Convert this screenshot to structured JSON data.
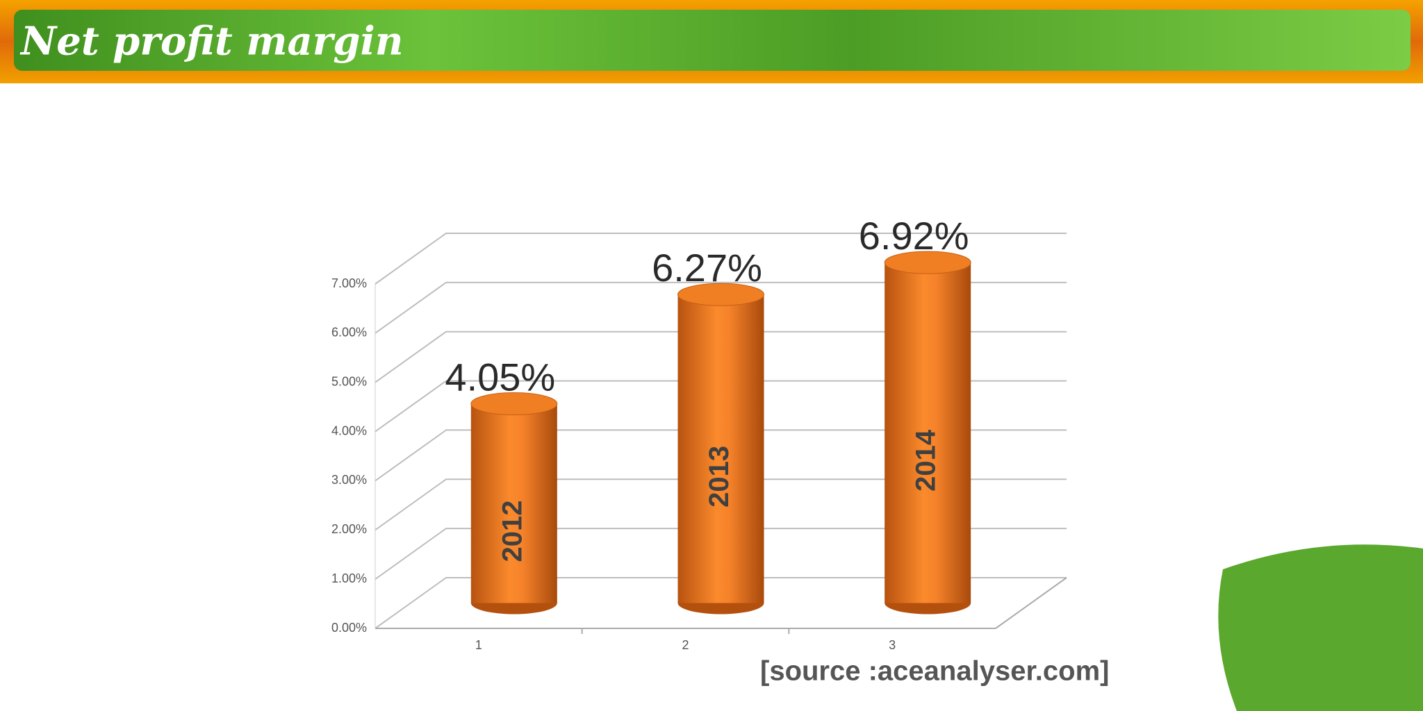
{
  "header": {
    "title": "Net profit margin"
  },
  "chart_data": {
    "type": "bar",
    "categories": [
      "1",
      "2",
      "3"
    ],
    "values": [
      4.05,
      6.27,
      6.92
    ],
    "value_labels": [
      "4.05%",
      "6.27%",
      "6.92%"
    ],
    "bar_labels": [
      "2012",
      "2013",
      "2014"
    ],
    "color": "#f07f23",
    "ylim": [
      0,
      7
    ],
    "yticks": [
      {
        "value": 0,
        "label": "0.00%"
      },
      {
        "value": 1,
        "label": "1.00%"
      },
      {
        "value": 2,
        "label": "2.00%"
      },
      {
        "value": 3,
        "label": "3.00%"
      },
      {
        "value": 4,
        "label": "4.00%"
      },
      {
        "value": 5,
        "label": "5.00%"
      },
      {
        "value": 6,
        "label": "6.00%"
      },
      {
        "value": 7,
        "label": "7.00%"
      }
    ],
    "grid": true
  },
  "source": "[source :aceanalyser.com]"
}
